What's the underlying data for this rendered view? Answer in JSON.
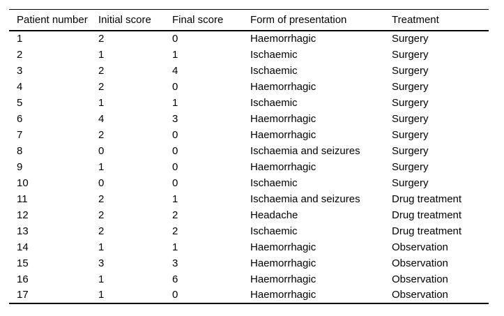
{
  "table": {
    "columns": [
      "Patient number",
      "Initial score",
      "Final score",
      "Form of presentation",
      "Treatment"
    ],
    "rows": [
      [
        "1",
        "2",
        "0",
        "Haemorrhagic",
        "Surgery"
      ],
      [
        "2",
        "1",
        "1",
        "Ischaemic",
        "Surgery"
      ],
      [
        "3",
        "2",
        "4",
        "Ischaemic",
        "Surgery"
      ],
      [
        "4",
        "2",
        "0",
        "Haemorrhagic",
        "Surgery"
      ],
      [
        "5",
        "1",
        "1",
        "Ischaemic",
        "Surgery"
      ],
      [
        "6",
        "4",
        "3",
        "Haemorrhagic",
        "Surgery"
      ],
      [
        "7",
        "2",
        "0",
        "Haemorrhagic",
        "Surgery"
      ],
      [
        "8",
        "0",
        "0",
        "Ischaemia and seizures",
        "Surgery"
      ],
      [
        "9",
        "1",
        "0",
        "Haemorrhagic",
        "Surgery"
      ],
      [
        "10",
        "0",
        "0",
        "Ischaemic",
        "Surgery"
      ],
      [
        "11",
        "2",
        "1",
        "Ischaemia and seizures",
        "Drug treatment"
      ],
      [
        "12",
        "2",
        "2",
        "Headache",
        "Drug treatment"
      ],
      [
        "13",
        "2",
        "2",
        "Ischaemic",
        "Drug treatment"
      ],
      [
        "14",
        "1",
        "1",
        "Haemorrhagic",
        "Observation"
      ],
      [
        "15",
        "3",
        "3",
        "Haemorrhagic",
        "Observation"
      ],
      [
        "16",
        "1",
        "6",
        "Haemorrhagic",
        "Observation"
      ],
      [
        "17",
        "1",
        "0",
        "Haemorrhagic",
        "Observation"
      ]
    ]
  },
  "colors": {
    "text": "#000000",
    "rule": "#000000",
    "background": "#ffffff"
  }
}
